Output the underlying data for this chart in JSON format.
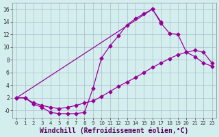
{
  "bg_color": "#d4eeee",
  "grid_color": "#aabbcc",
  "line_color": "#990099",
  "marker": "D",
  "markersize": 2.5,
  "linewidth": 0.9,
  "xlabel": "Windchill (Refroidissement éolien,°C)",
  "xlabel_fontsize": 7,
  "xlim": [
    -0.5,
    23.5
  ],
  "ylim": [
    -1.2,
    17
  ],
  "xticks": [
    0,
    1,
    2,
    3,
    4,
    5,
    6,
    7,
    8,
    9,
    10,
    11,
    12,
    13,
    14,
    15,
    16,
    17,
    18,
    19,
    20,
    21,
    22,
    23
  ],
  "yticks": [
    0,
    2,
    4,
    6,
    8,
    10,
    12,
    14,
    16
  ],
  "yticklabels": [
    "-0",
    "2",
    "4",
    "6",
    "8",
    "10",
    "12",
    "14",
    "16"
  ],
  "line1_x": [
    0,
    1,
    2,
    3,
    4,
    5,
    6,
    7,
    8,
    9,
    10,
    11,
    12,
    13,
    14,
    15,
    16,
    17
  ],
  "line1_y": [
    2,
    2,
    1,
    0.5,
    -0.3,
    -0.5,
    -0.5,
    -0.5,
    -0.3,
    3.5,
    8.3,
    10.2,
    11.8,
    13.5,
    14.5,
    15.3,
    16.0,
    14.0
  ],
  "line2_x": [
    0,
    1,
    2,
    3,
    4,
    5,
    6,
    7,
    8,
    9,
    10,
    11,
    12,
    13,
    14,
    15,
    16,
    17,
    18,
    19,
    20,
    21,
    22,
    23
  ],
  "line2_y": [
    2,
    2,
    1.2,
    0.8,
    0.5,
    0.3,
    0.5,
    0.8,
    1.2,
    1.5,
    2.2,
    3.0,
    3.8,
    4.5,
    5.2,
    6.0,
    6.8,
    7.5,
    8.2,
    8.8,
    9.2,
    9.5,
    9.2,
    7.5
  ],
  "line3_x": [
    0,
    16,
    17,
    18,
    19,
    20,
    21,
    22,
    23
  ],
  "line3_y": [
    2,
    16.0,
    13.8,
    12.2,
    12.0,
    9.2,
    8.5,
    7.5,
    7.0
  ]
}
